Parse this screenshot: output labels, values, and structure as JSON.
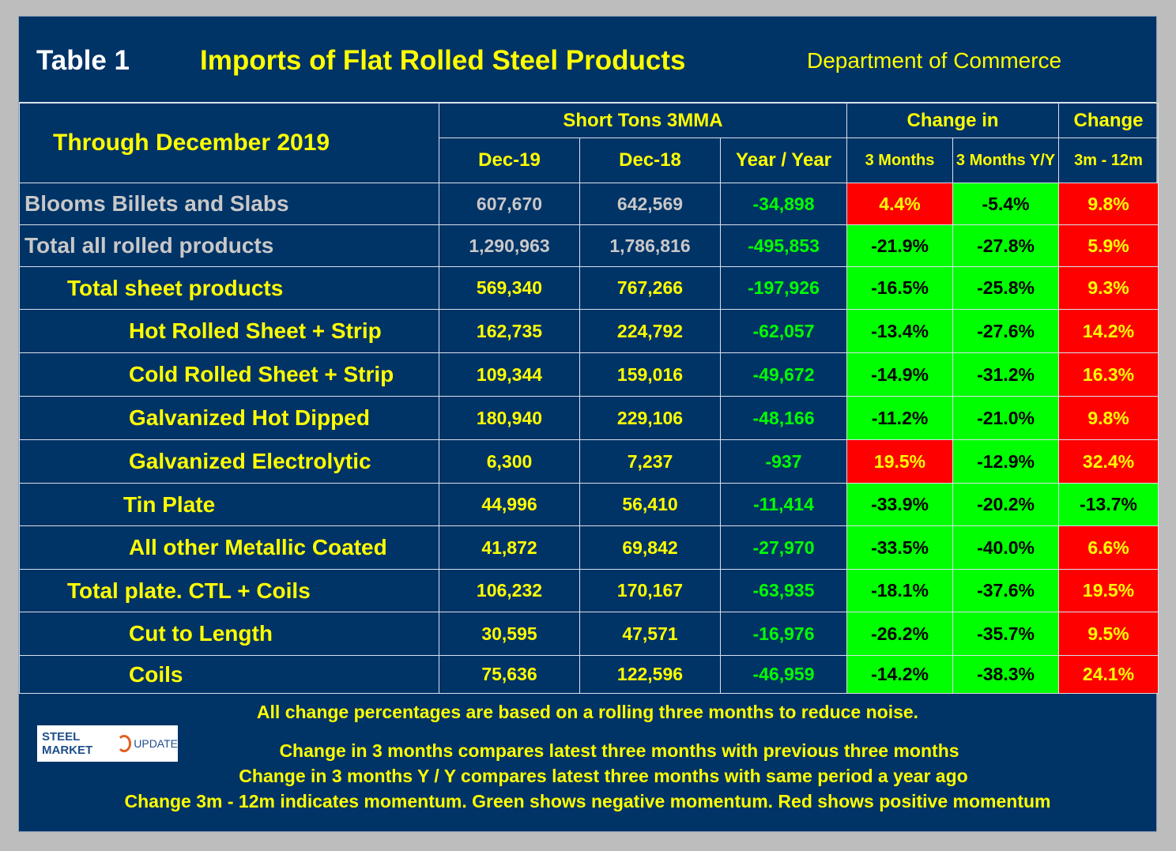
{
  "header": {
    "table_label": "Table 1",
    "title": "Imports of Flat Rolled Steel Products",
    "source": "Department of Commerce"
  },
  "columns": {
    "period": "Through December 2019",
    "group_short_tons": "Short Tons 3MMA",
    "group_change_in": "Change in",
    "group_change": "Change",
    "dec19": "Dec-19",
    "dec18": "Dec-18",
    "year_over_year": "Year / Year",
    "three_months": "3 Months",
    "three_months_yy": "3 Months Y/Y",
    "three_m_12m": "3m - 12m"
  },
  "rows": [
    {
      "label": "Blooms Billets and Slabs",
      "dec19": "607,670",
      "dec18": "642,569",
      "yy": "-34,898",
      "m3": "4.4%",
      "m3yy": "-5.4%",
      "mom": "9.8%"
    },
    {
      "label": "Total all rolled products",
      "dec19": "1,290,963",
      "dec18": "1,786,816",
      "yy": "-495,853",
      "m3": "-21.9%",
      "m3yy": "-27.8%",
      "mom": "5.9%"
    },
    {
      "label": "Total sheet products",
      "dec19": "569,340",
      "dec18": "767,266",
      "yy": "-197,926",
      "m3": "-16.5%",
      "m3yy": "-25.8%",
      "mom": "9.3%"
    },
    {
      "label": "Hot Rolled Sheet + Strip",
      "dec19": "162,735",
      "dec18": "224,792",
      "yy": "-62,057",
      "m3": "-13.4%",
      "m3yy": "-27.6%",
      "mom": "14.2%"
    },
    {
      "label": "Cold Rolled Sheet + Strip",
      "dec19": "109,344",
      "dec18": "159,016",
      "yy": "-49,672",
      "m3": "-14.9%",
      "m3yy": "-31.2%",
      "mom": "16.3%"
    },
    {
      "label": "Galvanized Hot Dipped",
      "dec19": "180,940",
      "dec18": "229,106",
      "yy": "-48,166",
      "m3": "-11.2%",
      "m3yy": "-21.0%",
      "mom": "9.8%"
    },
    {
      "label": "Galvanized Electrolytic",
      "dec19": "6,300",
      "dec18": "7,237",
      "yy": "-937",
      "m3": "19.5%",
      "m3yy": "-12.9%",
      "mom": "32.4%"
    },
    {
      "label": "Tin Plate",
      "dec19": "44,996",
      "dec18": "56,410",
      "yy": "-11,414",
      "m3": "-33.9%",
      "m3yy": "-20.2%",
      "mom": "-13.7%"
    },
    {
      "label": "All other Metallic Coated",
      "dec19": "41,872",
      "dec18": "69,842",
      "yy": "-27,970",
      "m3": "-33.5%",
      "m3yy": "-40.0%",
      "mom": "6.6%"
    },
    {
      "label": "Total plate. CTL + Coils",
      "dec19": "106,232",
      "dec18": "170,167",
      "yy": "-63,935",
      "m3": "-18.1%",
      "m3yy": "-37.6%",
      "mom": "19.5%"
    },
    {
      "label": "Cut to Length",
      "dec19": "30,595",
      "dec18": "47,571",
      "yy": "-16,976",
      "m3": "-26.2%",
      "m3yy": "-35.7%",
      "mom": "9.5%"
    },
    {
      "label": "Coils",
      "dec19": "75,636",
      "dec18": "122,596",
      "yy": "-46,959",
      "m3": "-14.2%",
      "m3yy": "-38.3%",
      "mom": "24.1%"
    }
  ],
  "colors": {
    "green": "#00ff00",
    "red": "#ff0000",
    "navy": "#003366",
    "yellow": "#ffff00"
  },
  "logo": {
    "part1": "STEEL MARKET",
    "part2": "UPDATE"
  },
  "footer": {
    "note": "All change percentages are based on a rolling three months to reduce noise.",
    "line1": "Change in 3 months compares latest three months with previous three months",
    "line2": "Change in 3 months  Y / Y compares latest three months with same period a year ago",
    "line3": "Change 3m - 12m indicates momentum. Green shows negative momentum. Red shows positive momentum"
  }
}
